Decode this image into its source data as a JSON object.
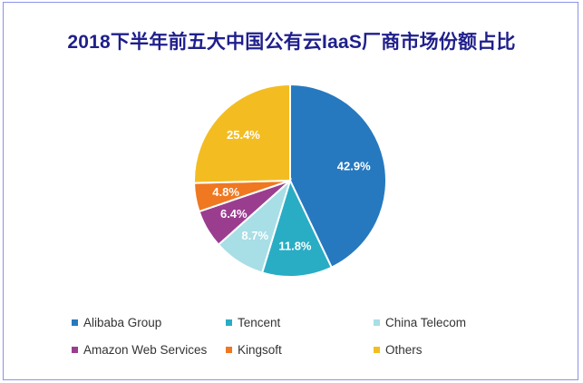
{
  "chart_data": {
    "type": "pie",
    "title": "2018下半年前五大中国公有云IaaS厂商市场份额占比",
    "slices": [
      {
        "name": "Alibaba Group",
        "value": 42.9,
        "label": "42.9%",
        "color": "#2679bf"
      },
      {
        "name": "Tencent",
        "value": 11.8,
        "label": "11.8%",
        "color": "#29adc4"
      },
      {
        "name": "China Telecom",
        "value": 8.7,
        "label": "8.7%",
        "color": "#a8dee6"
      },
      {
        "name": "Amazon Web Services",
        "value": 6.4,
        "label": "6.4%",
        "color": "#9b3d8f"
      },
      {
        "name": "Kingsoft",
        "value": 4.8,
        "label": "4.8%",
        "color": "#ef7820"
      },
      {
        "name": "Others",
        "value": 25.4,
        "label": "25.4%",
        "color": "#f3bd22"
      }
    ],
    "legend_position": "bottom"
  }
}
